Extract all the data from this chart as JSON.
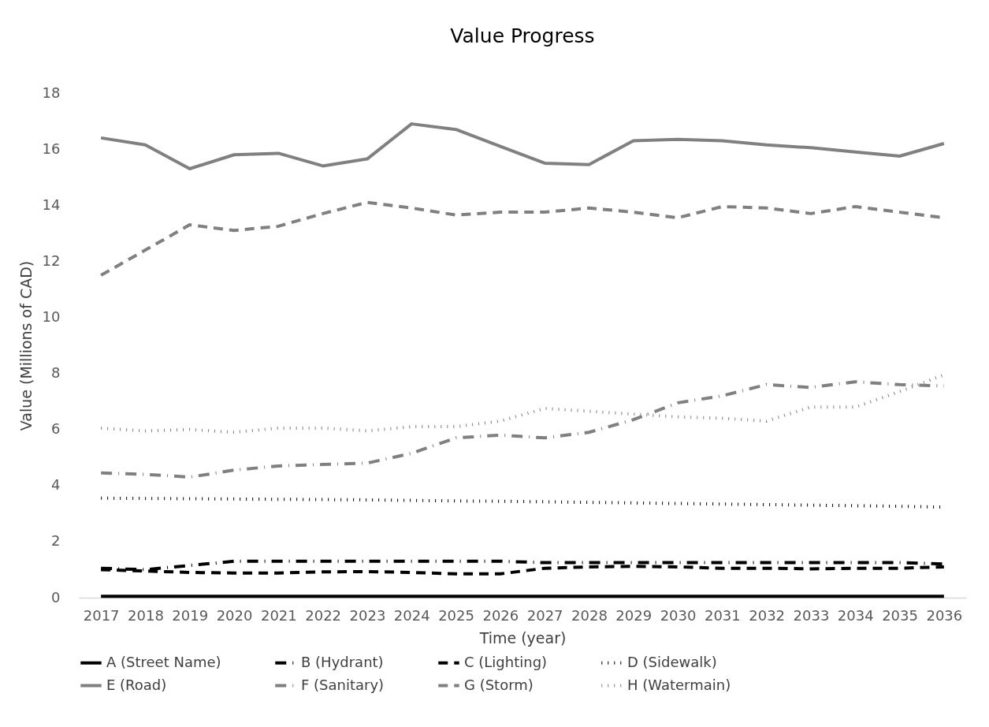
{
  "chart_data": {
    "type": "line",
    "title": "Value Progress",
    "xlabel": "Time (year)",
    "ylabel": "Value (Millions of CAD)",
    "categories": [
      "2017",
      "2018",
      "2019",
      "2020",
      "2021",
      "2022",
      "2023",
      "2024",
      "2025",
      "2026",
      "2027",
      "2028",
      "2029",
      "2030",
      "2031",
      "2032",
      "2033",
      "2034",
      "2035",
      "2036"
    ],
    "ylim": [
      0,
      18
    ],
    "yticks": [
      0,
      2,
      4,
      6,
      8,
      10,
      12,
      14,
      16,
      18
    ],
    "grid": false,
    "legend": "bottom",
    "marker": "none",
    "series": [
      {
        "name": "A (Street Name)",
        "color": "#000000",
        "line_style": "solid",
        "values": [
          0.05,
          0.05,
          0.05,
          0.05,
          0.05,
          0.05,
          0.05,
          0.05,
          0.05,
          0.05,
          0.05,
          0.05,
          0.05,
          0.05,
          0.05,
          0.05,
          0.05,
          0.05,
          0.05,
          0.05
        ]
      },
      {
        "name": "B (Hydrant)",
        "color": "#000000",
        "line_style": "dashdot",
        "values": [
          1.05,
          1.0,
          1.15,
          1.3,
          1.3,
          1.3,
          1.3,
          1.3,
          1.3,
          1.3,
          1.25,
          1.25,
          1.25,
          1.25,
          1.25,
          1.25,
          1.25,
          1.25,
          1.25,
          1.2
        ]
      },
      {
        "name": "C (Lighting)",
        "color": "#000000",
        "line_style": "dashed",
        "values": [
          1.0,
          0.95,
          0.9,
          0.88,
          0.88,
          0.92,
          0.93,
          0.9,
          0.85,
          0.85,
          1.05,
          1.1,
          1.12,
          1.1,
          1.05,
          1.05,
          1.03,
          1.05,
          1.05,
          1.1
        ]
      },
      {
        "name": "D (Sidewalk)",
        "color": "#000000",
        "line_style": "dotted",
        "values": [
          3.55,
          3.54,
          3.53,
          3.52,
          3.51,
          3.5,
          3.49,
          3.47,
          3.45,
          3.44,
          3.42,
          3.4,
          3.38,
          3.36,
          3.34,
          3.32,
          3.3,
          3.28,
          3.26,
          3.23
        ]
      },
      {
        "name": "E (Road)",
        "color": "#808080",
        "line_style": "solid",
        "values": [
          16.4,
          16.15,
          15.3,
          15.8,
          15.85,
          15.4,
          15.65,
          16.9,
          16.7,
          16.1,
          15.5,
          15.45,
          16.3,
          16.35,
          16.3,
          16.15,
          16.05,
          15.9,
          15.75,
          16.2
        ]
      },
      {
        "name": "F (Sanitary)",
        "color": "#808080",
        "line_style": "dashdot",
        "values": [
          4.45,
          4.4,
          4.3,
          4.55,
          4.7,
          4.75,
          4.8,
          5.15,
          5.7,
          5.8,
          5.7,
          5.9,
          6.35,
          6.95,
          7.2,
          7.6,
          7.5,
          7.7,
          7.6,
          7.55
        ]
      },
      {
        "name": "G (Storm)",
        "color": "#808080",
        "line_style": "dashed",
        "values": [
          11.5,
          12.4,
          13.3,
          13.1,
          13.25,
          13.7,
          14.1,
          13.9,
          13.65,
          13.75,
          13.75,
          13.9,
          13.75,
          13.55,
          13.95,
          13.9,
          13.7,
          13.95,
          13.75,
          13.55
        ]
      },
      {
        "name": "H (Watermain)",
        "color": "#808080",
        "line_style": "dotted",
        "values": [
          6.05,
          5.95,
          6.0,
          5.9,
          6.05,
          6.05,
          5.95,
          6.1,
          6.1,
          6.3,
          6.75,
          6.65,
          6.55,
          6.45,
          6.4,
          6.3,
          6.8,
          6.8,
          7.35,
          7.95
        ]
      }
    ]
  }
}
